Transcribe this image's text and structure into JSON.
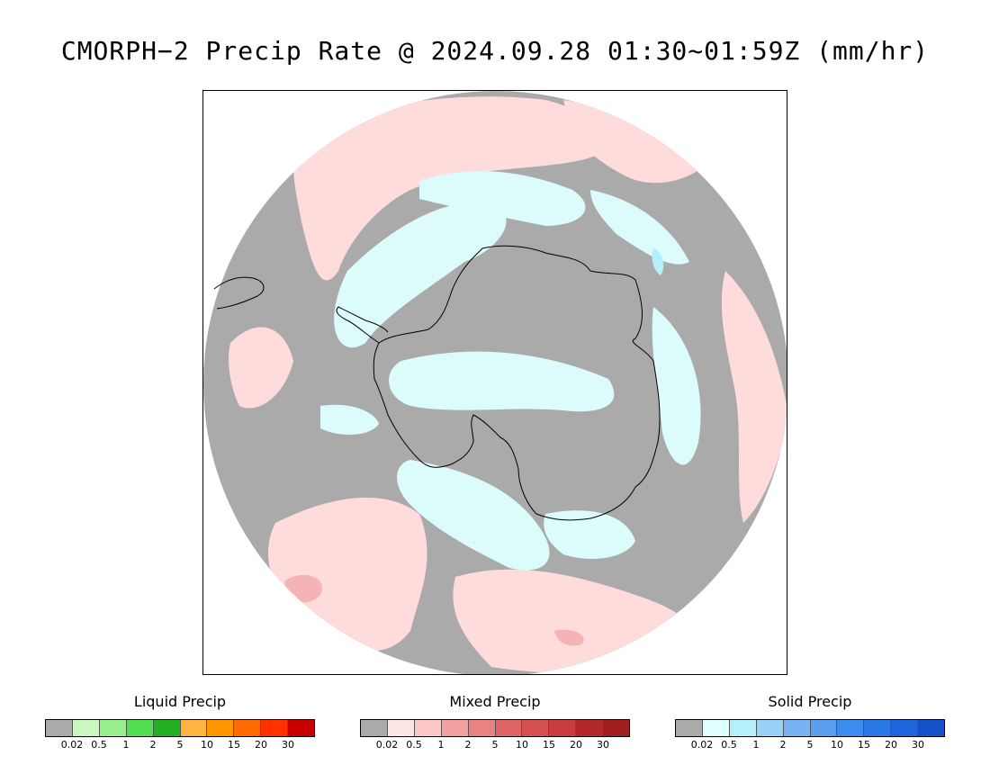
{
  "title": "CMORPH−2 Precip Rate @ 2024.09.28 01:30~01:59Z (mm/hr)",
  "map": {
    "projection": "south-polar-stereographic",
    "region": "Antarctica / Southern Ocean",
    "colors": {
      "no_precip": "#aaaaaa",
      "mixed_light": "#ffdcdc",
      "solid_light": "#dcfcfc",
      "coast": "#000000"
    }
  },
  "legends": [
    {
      "title": "Liquid Precip",
      "colors": [
        "#aaaaaa",
        "#c8f8c0",
        "#96f08c",
        "#50e050",
        "#20b020",
        "#ffb440",
        "#ff9600",
        "#ff6a00",
        "#ff3200",
        "#c80000"
      ],
      "ticks": [
        "0.02",
        "0.5",
        "1",
        "2",
        "5",
        "10",
        "15",
        "20",
        "30"
      ]
    },
    {
      "title": "Mixed Precip",
      "colors": [
        "#aaaaaa",
        "#ffe6e6",
        "#ffc8c8",
        "#f5a0a0",
        "#eb8282",
        "#e06464",
        "#d75050",
        "#c83c3c",
        "#b42828",
        "#a01e1e"
      ],
      "ticks": [
        "0.02",
        "0.5",
        "1",
        "2",
        "5",
        "10",
        "15",
        "20",
        "30"
      ]
    },
    {
      "title": "Solid Precip",
      "colors": [
        "#aaaaaa",
        "#e0ffff",
        "#b4f0fa",
        "#96d2fa",
        "#78b4f5",
        "#5aa0f0",
        "#3c8cf0",
        "#2878e6",
        "#1e64dc",
        "#1450c8"
      ],
      "ticks": [
        "0.02",
        "0.5",
        "1",
        "2",
        "5",
        "10",
        "15",
        "20",
        "30"
      ]
    }
  ]
}
